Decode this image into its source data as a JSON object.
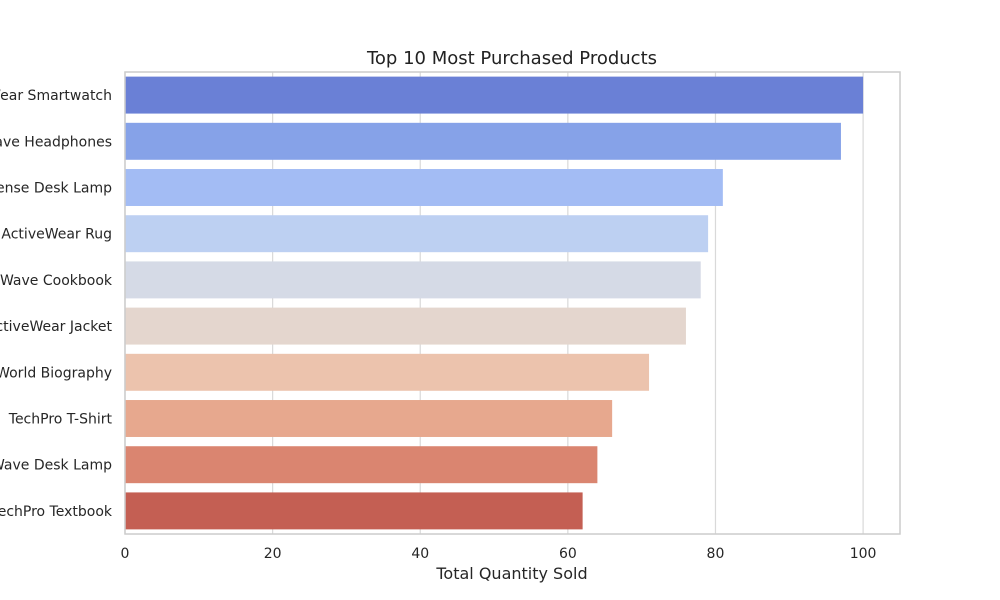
{
  "chart_data": {
    "type": "bar",
    "orientation": "horizontal",
    "title": "Top 10 Most Purchased Products",
    "xlabel": "Total Quantity Sold",
    "ylabel": "",
    "xlim": [
      0,
      105
    ],
    "xticks": [
      0,
      20,
      40,
      60,
      80,
      100
    ],
    "grid": true,
    "categories": [
      "Wear Smartwatch",
      "ave Headphones",
      "ense Desk Lamp",
      "ActiveWear Rug",
      "Wave Cookbook",
      "ctiveWear Jacket",
      "World Biography",
      "TechPro T-Shirt",
      "Wave Desk Lamp",
      "echPro Textbook"
    ],
    "values": [
      100,
      97,
      81,
      79,
      78,
      76,
      71,
      66,
      64,
      62
    ],
    "colors": [
      "#6a80d6",
      "#86a2e8",
      "#a3bcf4",
      "#bdd0f2",
      "#d5dae6",
      "#e4d6ce",
      "#ecc3ad",
      "#e7a88e",
      "#da8570",
      "#c45f53"
    ]
  }
}
